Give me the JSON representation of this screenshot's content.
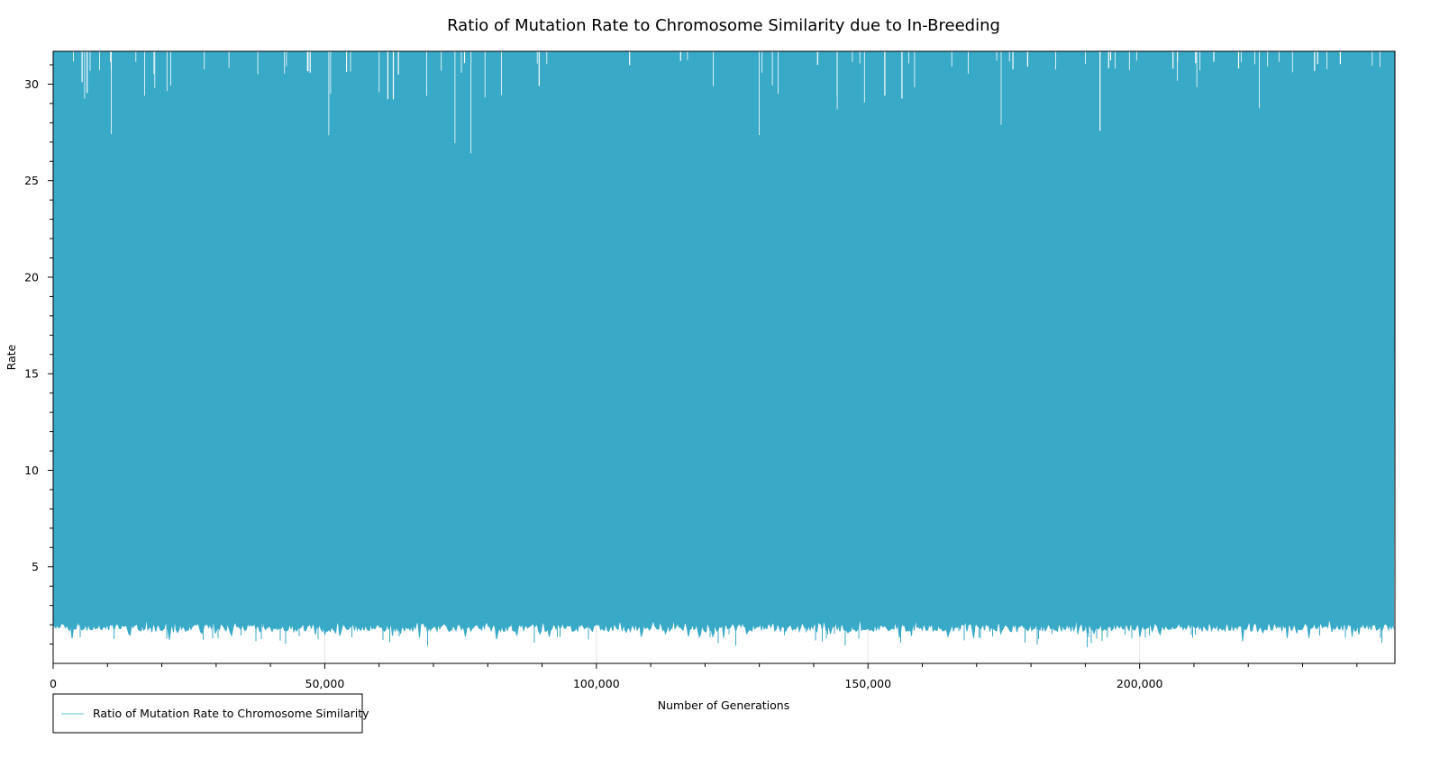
{
  "chart_data": {
    "type": "line",
    "title": "Ratio of Mutation Rate to Chromosome Similarity due to In-Breeding",
    "xlabel": "Number of Generations",
    "ylabel": "Rate",
    "xlim": [
      0,
      247000
    ],
    "ylim": [
      0,
      31.7
    ],
    "x_ticks": [
      {
        "value": 0,
        "label": "0"
      },
      {
        "value": 50000,
        "label": "50,000"
      },
      {
        "value": 100000,
        "label": "100,000"
      },
      {
        "value": 150000,
        "label": "150,000"
      },
      {
        "value": 200000,
        "label": "200,000"
      }
    ],
    "x_minor_step": 10000,
    "y_ticks": [
      {
        "value": 5,
        "label": "5"
      },
      {
        "value": 10,
        "label": "10"
      },
      {
        "value": 15,
        "label": "15"
      },
      {
        "value": 20,
        "label": "20"
      },
      {
        "value": 25,
        "label": "25"
      },
      {
        "value": 30,
        "label": "30"
      }
    ],
    "y_minor_step": 1,
    "grid": "x-major",
    "legend_position": "bottom-left",
    "series": [
      {
        "name": "Ratio of Mutation Rate to Chromosome Similarity",
        "color": "#38a9c7",
        "legend_color": "#7dcfe0",
        "approx_min_range": [
          1.3,
          2.3
        ],
        "max": 31.7
      }
    ]
  }
}
